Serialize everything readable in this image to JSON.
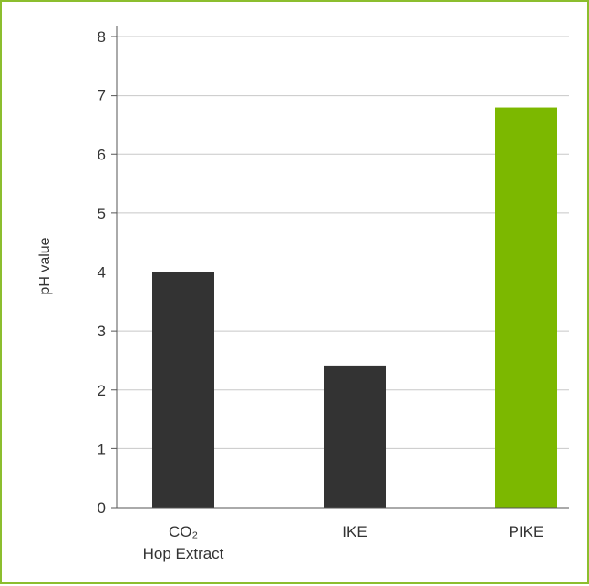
{
  "chart_data": {
    "type": "bar",
    "title": "",
    "xlabel": "",
    "ylabel": "pH value",
    "ylim": [
      0,
      8
    ],
    "yticks": [
      0,
      1,
      2,
      3,
      4,
      5,
      6,
      7,
      8
    ],
    "grid": true,
    "legend": "none",
    "categories": [
      {
        "label_lines": [
          "CO₂",
          "Hop Extract"
        ]
      },
      {
        "label_lines": [
          "IKE"
        ]
      },
      {
        "label_lines": [
          "PIKE"
        ]
      }
    ],
    "values": [
      4.0,
      2.4,
      6.8
    ],
    "colors": [
      "#333333",
      "#333333",
      "#7cb800"
    ]
  },
  "colors": {
    "frame": "#8cbe2e",
    "grid": "#c8c8c8",
    "axis": "#555555",
    "text": "#333333"
  }
}
